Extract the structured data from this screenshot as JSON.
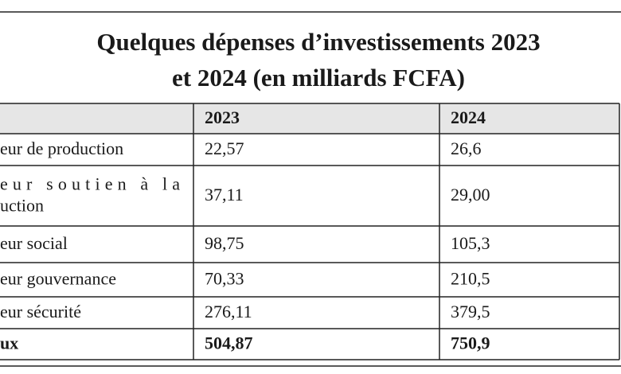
{
  "title": [
    "Quelques dépenses d’investissements 2023",
    "et 2024 (en milliards FCFA)"
  ],
  "table": {
    "header": [
      "2023",
      "2024"
    ],
    "rows": [
      [
        [
          "eur de production"
        ],
        "22,57",
        "26,6"
      ],
      [
        [
          "eur soutien à la",
          "uction"
        ],
        "37,11",
        "29,00"
      ],
      [
        [
          "eur social"
        ],
        "98,75",
        "105,3"
      ],
      [
        [
          "eur gouvernance"
        ],
        "70,33",
        "210,5"
      ],
      [
        [
          "eur sécurité"
        ],
        "276,11",
        "379,5"
      ],
      [
        [
          "ux"
        ],
        "504,87",
        "750,9"
      ]
    ]
  }
}
